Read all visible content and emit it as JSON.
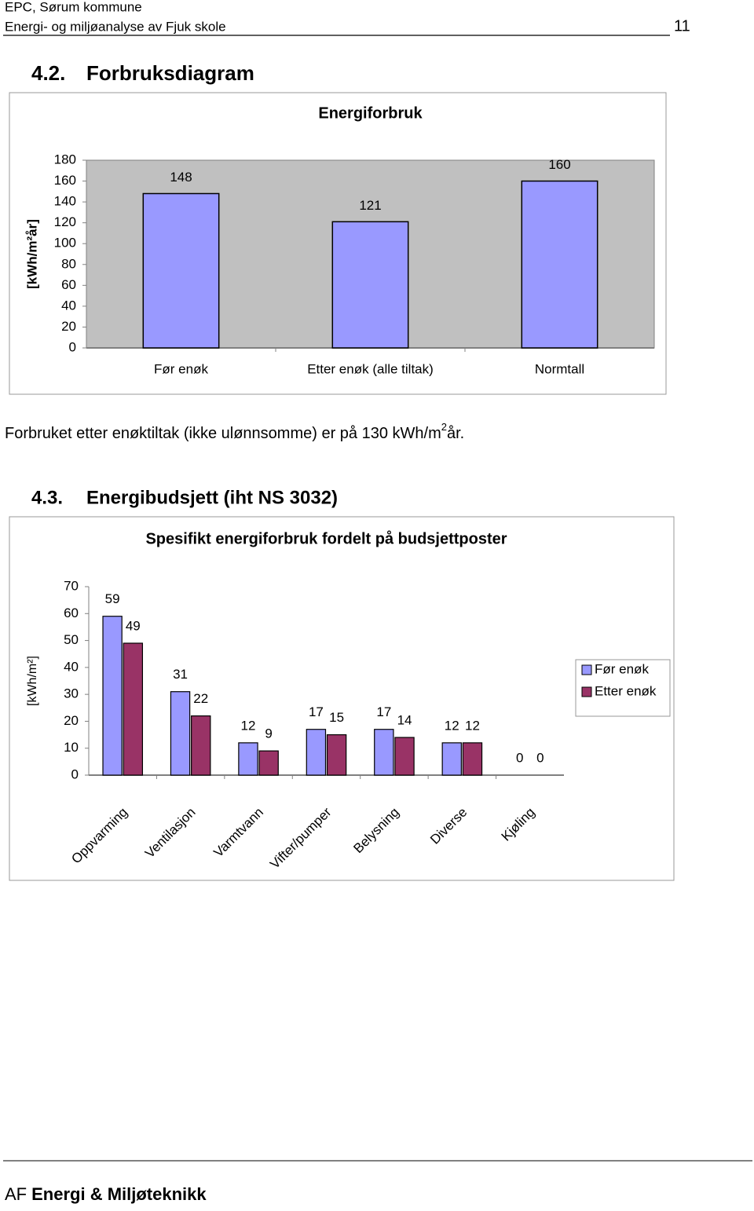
{
  "header": {
    "line1": "EPC, Sørum kommune",
    "line2": "Energi- og miljøanalyse av Fjuk skole",
    "page": "11"
  },
  "section_1": {
    "number": "4.2.",
    "title": "Forbruksdiagram"
  },
  "note": {
    "before": "Forbruket etter enøktiltak (ikke ulønnsomme) er på 130 kWh/m",
    "sup": "2",
    "after": "år."
  },
  "section_2": {
    "number": "4.3.",
    "title": "Energibudsjett (iht NS 3032)"
  },
  "chart_data": [
    {
      "type": "bar",
      "title": "Energiforbruk",
      "y_label": "[kWh/m²år]",
      "categories": [
        "Før enøk",
        "Etter enøk (alle tiltak)",
        "Normtall"
      ],
      "values": [
        148,
        121,
        160
      ],
      "color": "#9999ff",
      "background": "#c0c0c0",
      "ylim": [
        0,
        180
      ],
      "yticks": [
        0,
        20,
        40,
        60,
        80,
        100,
        120,
        140,
        160,
        180
      ]
    },
    {
      "type": "grouped-bar",
      "title": "Spesifikt energiforbruk fordelt på budsjettposter",
      "y_label": "[kWh/m²]",
      "categories": [
        "Oppvarming",
        "Ventilasjon",
        "Varmtvann",
        "Vifter/pumper",
        "Belysning",
        "Diverse",
        "Kjøling"
      ],
      "series": [
        {
          "name": "Før enøk",
          "color": "#9999ff",
          "values": [
            59,
            31,
            12,
            17,
            17,
            12,
            0
          ]
        },
        {
          "name": "Etter enøk",
          "color": "#993366",
          "values": [
            49,
            22,
            9,
            15,
            14,
            12,
            0
          ]
        }
      ],
      "background": "#ffffff",
      "legend": "right",
      "ylim": [
        0,
        70
      ],
      "yticks": [
        0,
        10,
        20,
        30,
        40,
        50,
        60,
        70
      ]
    }
  ],
  "footer": {
    "prefix": "AF",
    "name": "Energi & Miljøteknikk"
  }
}
